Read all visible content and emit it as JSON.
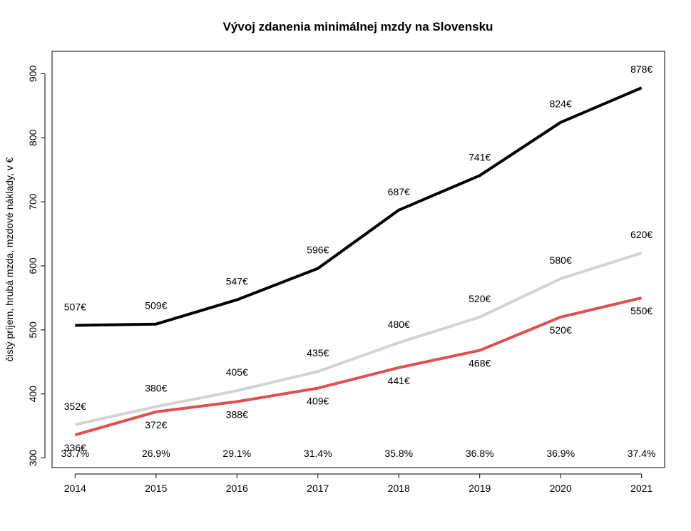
{
  "chart_data": {
    "type": "line",
    "title": "Vývoj zdanenia minimálnej mzdy na Slovensku",
    "xlabel": "",
    "ylabel": "čistý príjem, hrubá mzda, mzdové náklady, v €",
    "x": [
      2014,
      2015,
      2016,
      2017,
      2018,
      2019,
      2020,
      2021
    ],
    "ylim": [
      285,
      935
    ],
    "yticks": [
      300,
      400,
      500,
      600,
      700,
      800,
      900
    ],
    "grid": false,
    "legend": "none",
    "series": [
      {
        "key": "black",
        "color": "#000000",
        "values": [
          507,
          509,
          547,
          596,
          687,
          741,
          824,
          878
        ],
        "labels": [
          "507€",
          "509€",
          "547€",
          "596€",
          "687€",
          "741€",
          "824€",
          "878€"
        ],
        "label_position": "above"
      },
      {
        "key": "gray",
        "color": "#d3d3d3",
        "values": [
          352,
          380,
          405,
          435,
          480,
          520,
          580,
          620
        ],
        "labels": [
          "352€",
          "380€",
          "405€",
          "435€",
          "480€",
          "520€",
          "580€",
          "620€"
        ],
        "label_position": "above"
      },
      {
        "key": "red",
        "color": "#df5050",
        "values": [
          336,
          372,
          388,
          409,
          441,
          468,
          520,
          550
        ],
        "labels": [
          "336€",
          "372€",
          "388€",
          "409€",
          "441€",
          "468€",
          "520€",
          "550€"
        ],
        "label_position": "below"
      }
    ],
    "bottom_annotations": [
      "33.7%",
      "26.9%",
      "29.1%",
      "31.4%",
      "35.8%",
      "36.8%",
      "36.9%",
      "37.4%"
    ]
  }
}
